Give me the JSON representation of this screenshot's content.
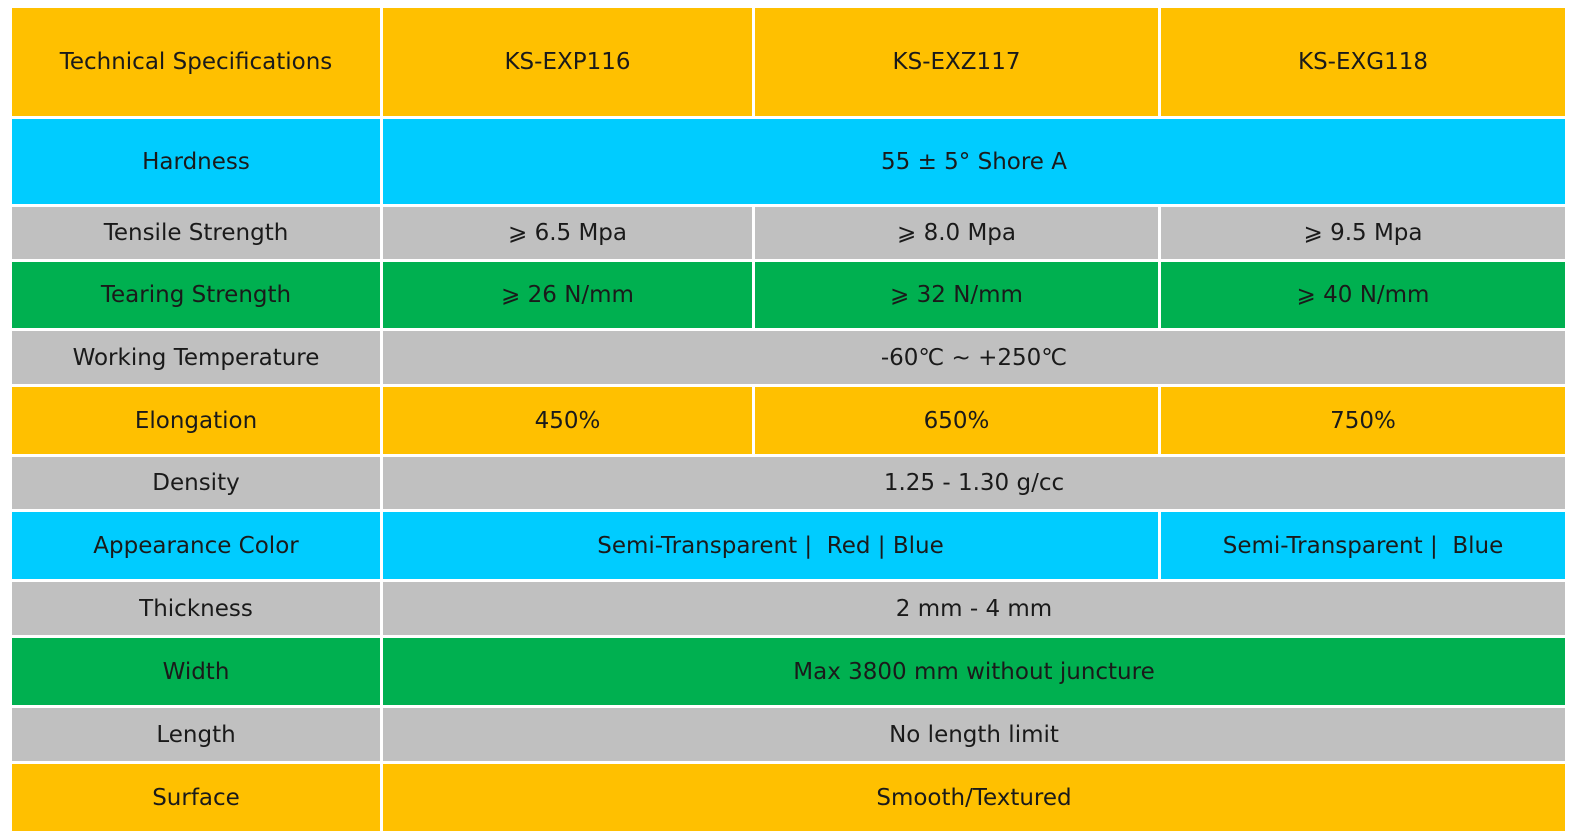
{
  "header": {
    "label": "Technical Specifications",
    "models": [
      "KS-EXP116",
      "KS-EXZ117",
      "KS-EXG118"
    ]
  },
  "rows": [
    {
      "label": "Hardness",
      "value": "55 ± 5° Shore A"
    },
    {
      "label": "Tensile Strength",
      "values": [
        "⩾ 6.5 Mpa",
        "⩾ 8.0 Mpa",
        "⩾ 9.5 Mpa"
      ]
    },
    {
      "label": "Tearing Strength",
      "values": [
        "⩾ 26 N/mm",
        "⩾ 32 N/mm",
        "⩾ 40 N/mm"
      ]
    },
    {
      "label": "Working Temperature",
      "value": "-60℃ ~ +250℃"
    },
    {
      "label": "Elongation",
      "values": [
        "450%",
        "650%",
        "750%"
      ]
    },
    {
      "label": "Density",
      "value": "1.25 - 1.30 g/cc"
    },
    {
      "label": "Appearance Color",
      "values": [
        "Semi-Transparent |  Red | Blue",
        "Semi-Transparent |  Blue"
      ]
    },
    {
      "label": "Thickness",
      "value": "2 mm - 4 mm"
    },
    {
      "label": "Width",
      "value": "Max 3800 mm without juncture"
    },
    {
      "label": "Length",
      "value": "No length limit"
    },
    {
      "label": "Surface",
      "value": "Smooth/Textured"
    }
  ],
  "colors": {
    "orange": "#FFC000",
    "blue": "#00CCFF",
    "gray": "#C0C0C0",
    "green": "#00B050"
  }
}
